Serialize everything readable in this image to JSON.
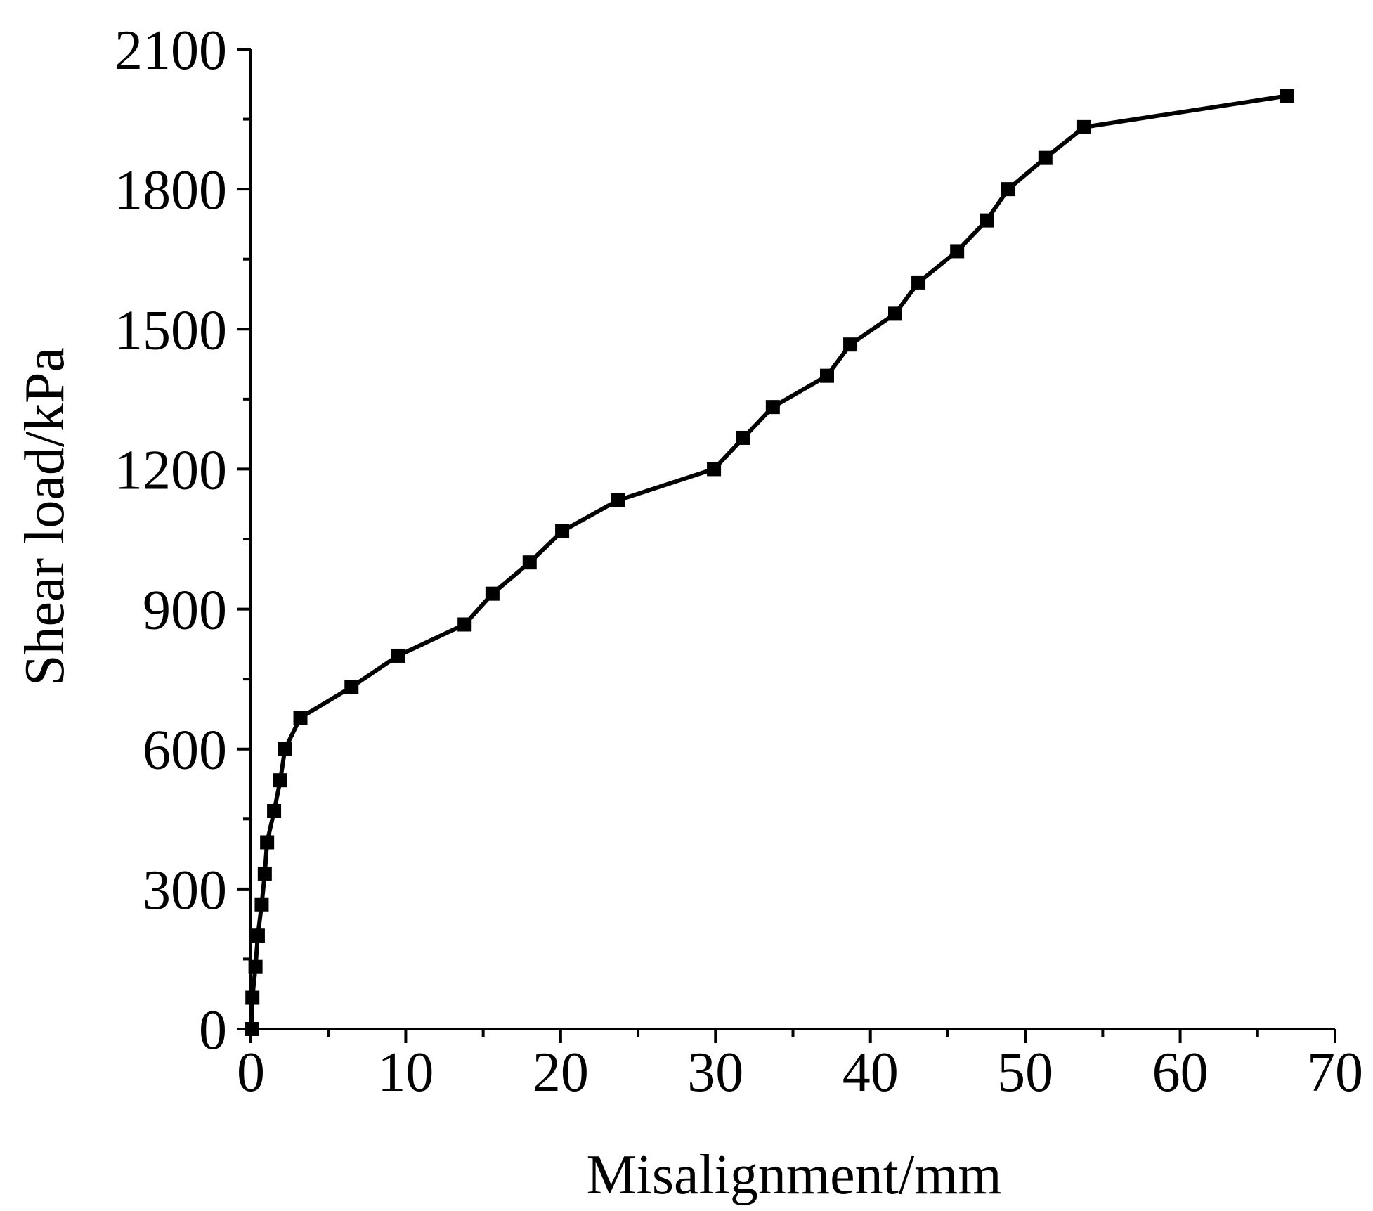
{
  "chart_data": {
    "type": "line",
    "title": "",
    "xlabel": "Misalignment/mm",
    "ylabel": "Shear load/kPa",
    "xlim": [
      0,
      70
    ],
    "ylim": [
      0,
      2100
    ],
    "x_ticks": [
      0,
      10,
      20,
      30,
      40,
      50,
      60,
      70
    ],
    "y_ticks": [
      0,
      300,
      600,
      900,
      1200,
      1500,
      1800,
      2100
    ],
    "x_tick_labels": [
      "0",
      "10",
      "20",
      "30",
      "40",
      "50",
      "60",
      "70"
    ],
    "y_tick_labels": [
      "0",
      "300",
      "600",
      "900",
      "1200",
      "1500",
      "1800",
      "2100"
    ],
    "grid": false,
    "legend": "none",
    "marker": "square",
    "line_color": "#000000",
    "series": [
      {
        "x": [
          0.05,
          0.1,
          0.3,
          0.45,
          0.7,
          0.9,
          1.05,
          1.5,
          1.9,
          2.2,
          3.2,
          6.5,
          9.5,
          13.8,
          15.6,
          18.0,
          20.1,
          23.7,
          29.9,
          31.8,
          33.7,
          37.2,
          38.7,
          41.6,
          43.1,
          45.6,
          47.5,
          48.9,
          51.3,
          53.8,
          66.9
        ],
        "y": [
          0,
          67,
          133,
          200,
          267,
          333,
          400,
          467,
          533,
          600,
          667,
          733,
          800,
          867,
          933,
          1000,
          1067,
          1133,
          1200,
          1267,
          1333,
          1400,
          1467,
          1533,
          1600,
          1667,
          1733,
          1800,
          1867,
          1933,
          2000
        ]
      }
    ]
  }
}
